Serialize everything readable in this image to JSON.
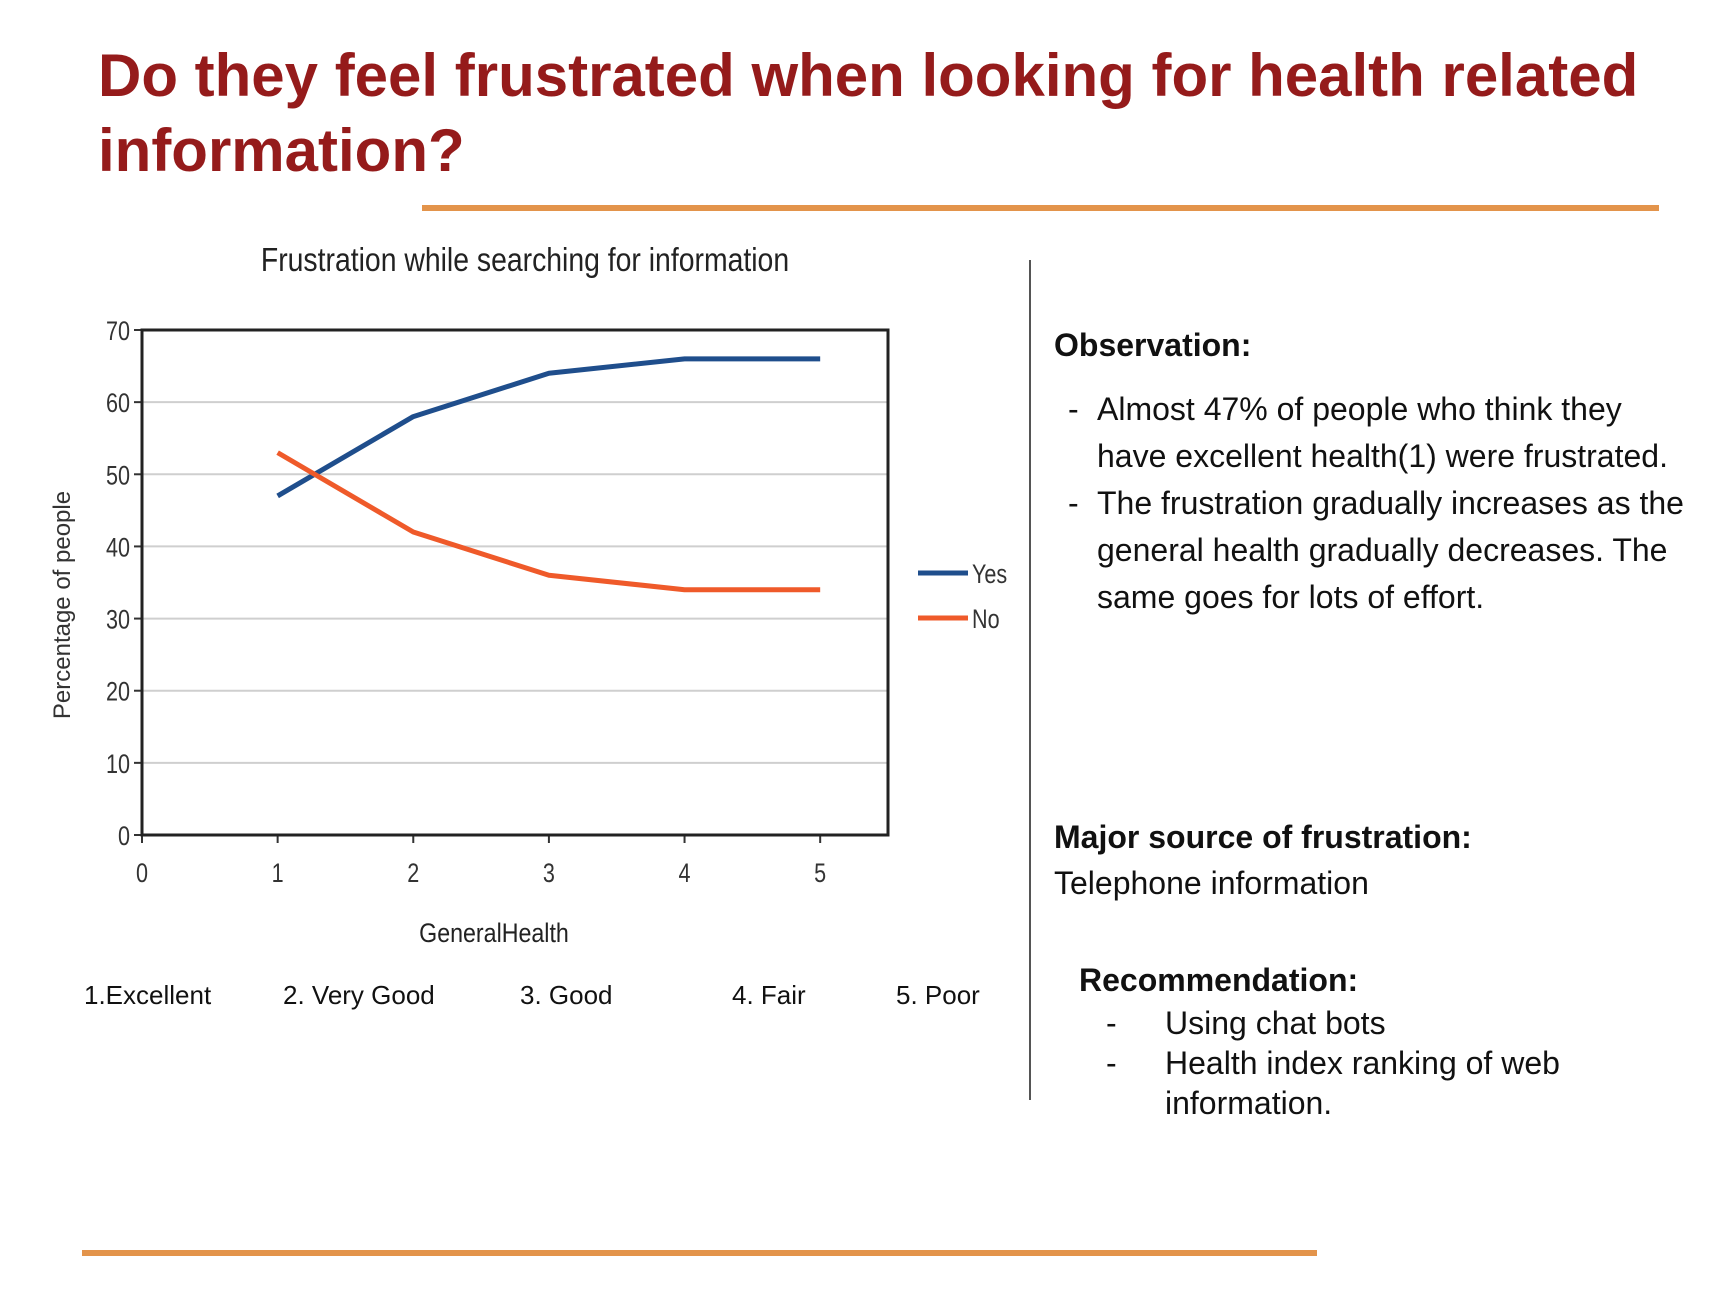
{
  "title": "Do they feel frustrated when looking for health related information?",
  "chart_data": {
    "type": "line",
    "title": "Frustration while searching for information",
    "xlabel": "GeneralHealth",
    "ylabel": "Percentage of people",
    "x": [
      1,
      2,
      3,
      4,
      5
    ],
    "xlim": [
      0,
      5.5
    ],
    "ylim": [
      0,
      70
    ],
    "x_ticks": [
      "0",
      "1",
      "2",
      "3",
      "4",
      "5"
    ],
    "y_ticks": [
      "0",
      "10",
      "20",
      "30",
      "40",
      "50",
      "60",
      "70"
    ],
    "grid": true,
    "legend": "right",
    "series": [
      {
        "name": "Yes",
        "color": "#1f4e8c",
        "values": [
          47,
          58,
          64,
          66,
          66
        ]
      },
      {
        "name": "No",
        "color": "#ef5a2a",
        "values": [
          53,
          42,
          36,
          34,
          34
        ]
      }
    ]
  },
  "categories": [
    "1.Excellent",
    "2. Very Good",
    "3. Good",
    "4. Fair",
    "5. Poor"
  ],
  "observation": {
    "heading": "Observation:",
    "items": [
      "Almost 47% of people who think they have excellent health(1) were frustrated.",
      "The frustration gradually increases as the general health gradually decreases. The same goes for lots of effort."
    ]
  },
  "major_source": {
    "heading": "Major source of frustration:",
    "text": "Telephone information"
  },
  "recommendation": {
    "heading": "Recommendation:",
    "items": [
      "Using chat bots",
      "Health index ranking of web information."
    ]
  },
  "colors": {
    "title": "#951b1b",
    "accent_rule": "#e3944b"
  }
}
